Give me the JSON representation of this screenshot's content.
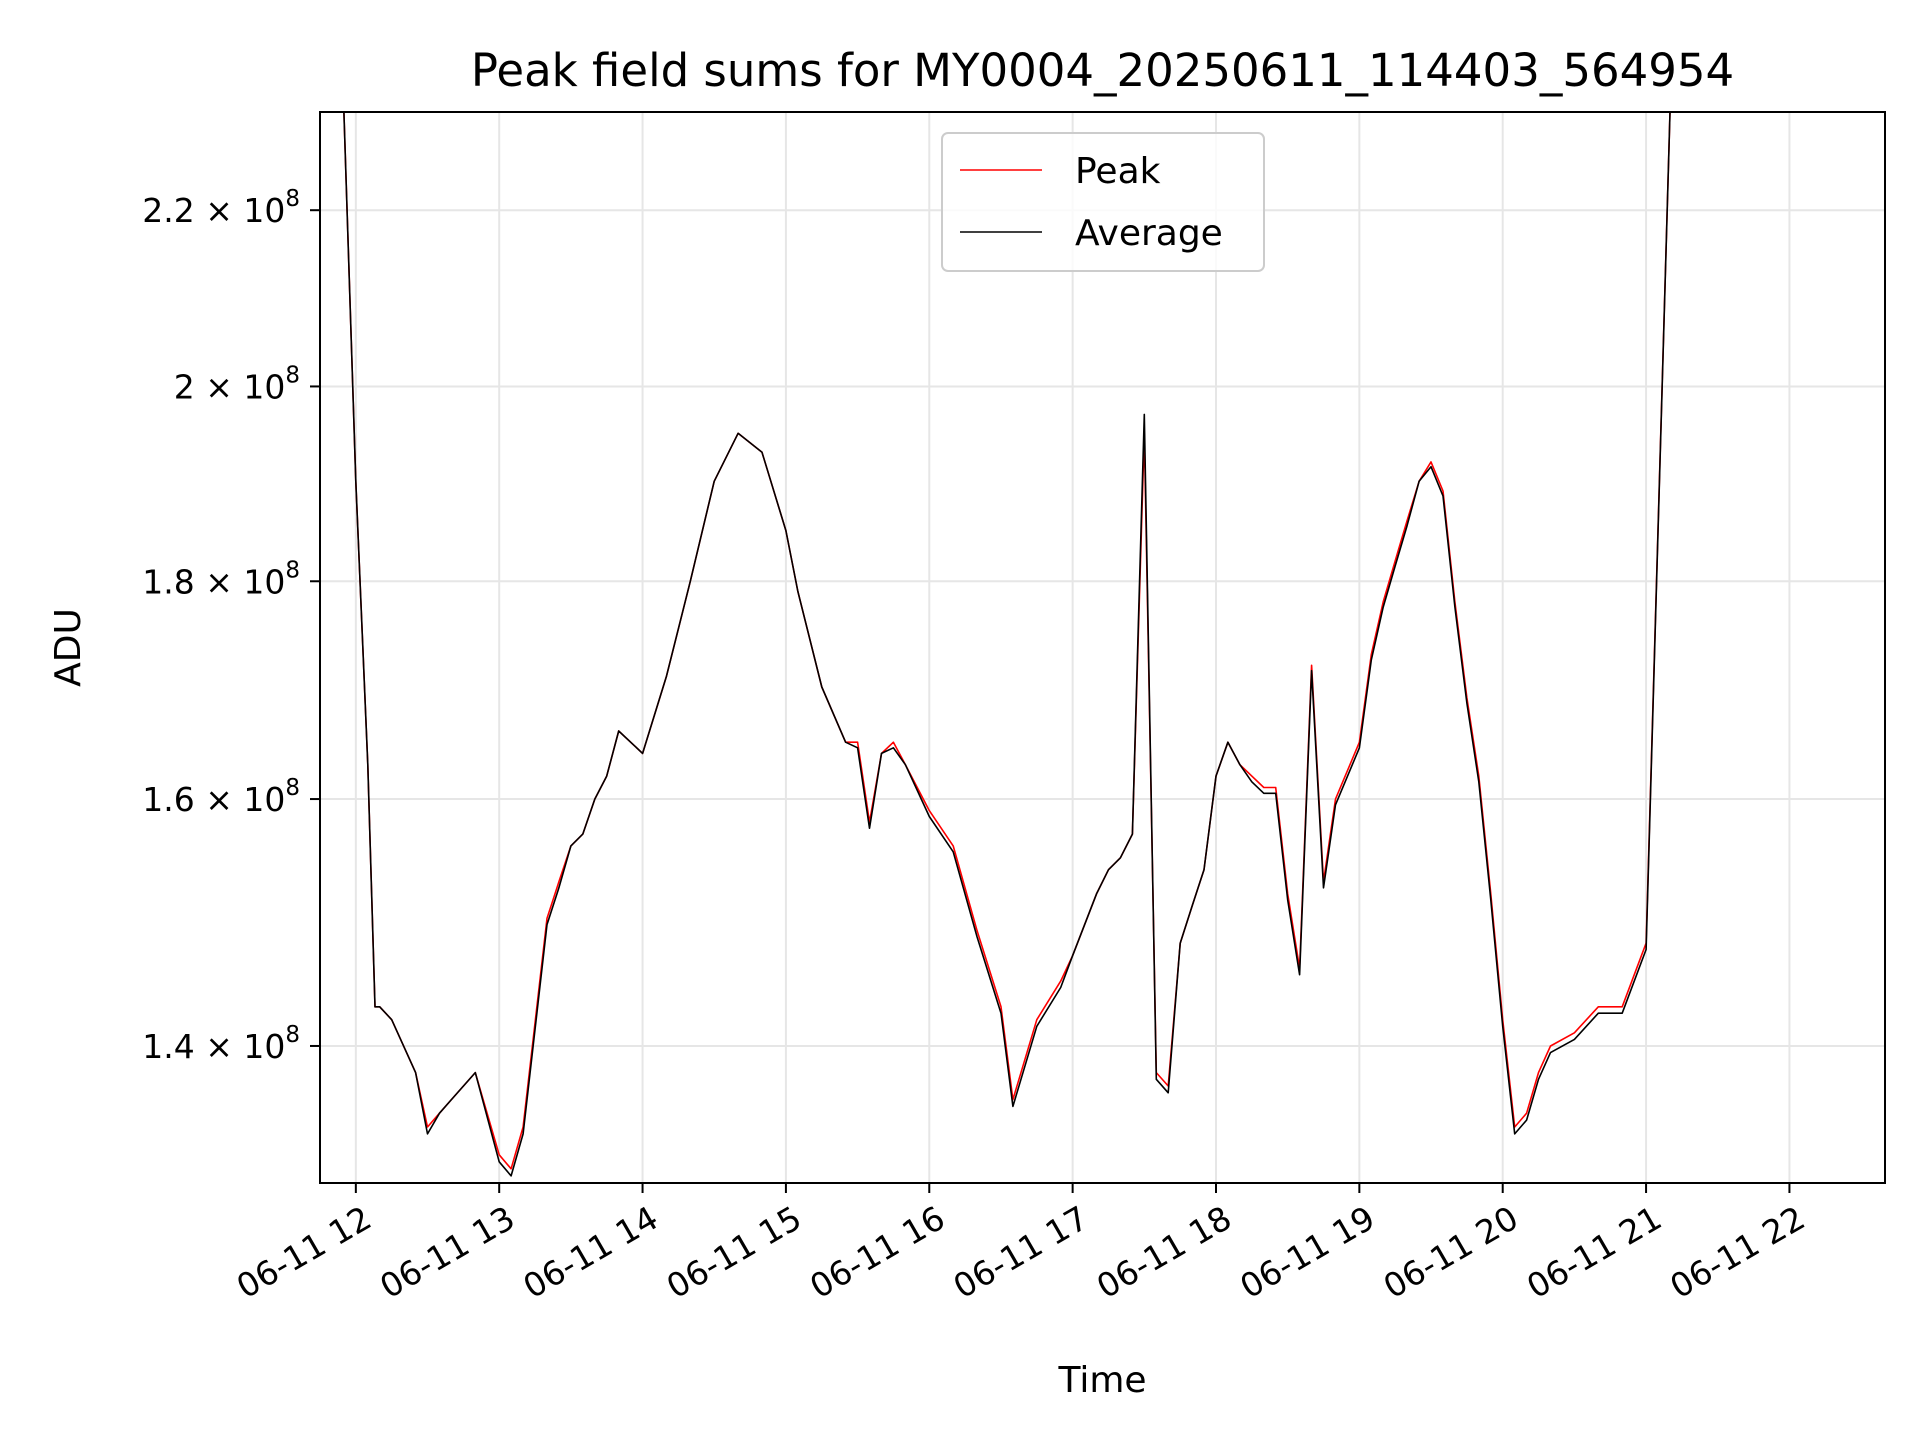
{
  "chart_data": {
    "type": "line",
    "title": "Peak field sums for MY0004_20250611_114403_564954",
    "xlabel": "Time",
    "ylabel": "ADU",
    "yscale": "log",
    "grid": true,
    "legend": "upper center",
    "xlim": [
      "2025-06-11 11:45",
      "2025-06-11 22:40"
    ],
    "ylim": [
      130000000,
      232000000
    ],
    "x_ticks": [
      "06-11 12",
      "06-11 13",
      "06-11 14",
      "06-11 15",
      "06-11 16",
      "06-11 17",
      "06-11 18",
      "06-11 19",
      "06-11 20",
      "06-11 21",
      "06-11 22"
    ],
    "y_ticks": [
      {
        "value": 140000000,
        "mantissa": "1.4",
        "exponent": "8"
      },
      {
        "value": 160000000,
        "mantissa": "1.6",
        "exponent": "8"
      },
      {
        "value": 180000000,
        "mantissa": "1.8",
        "exponent": "8"
      },
      {
        "value": 200000000,
        "mantissa": "2",
        "exponent": "8"
      },
      {
        "value": 220000000,
        "mantissa": "2.2",
        "exponent": "8"
      }
    ],
    "colors": {
      "Peak": "#ff0000",
      "Average": "#000000"
    },
    "x": [
      "11:45",
      "11:55",
      "12:00",
      "12:05",
      "12:08",
      "12:10",
      "12:15",
      "12:25",
      "12:30",
      "12:35",
      "12:40",
      "12:50",
      "13:00",
      "13:05",
      "13:10",
      "13:20",
      "13:25",
      "13:30",
      "13:35",
      "13:40",
      "13:45",
      "13:50",
      "14:00",
      "14:10",
      "14:20",
      "14:30",
      "14:40",
      "14:50",
      "15:00",
      "15:05",
      "15:15",
      "15:25",
      "15:30",
      "15:35",
      "15:40",
      "15:45",
      "15:50",
      "16:00",
      "16:10",
      "16:20",
      "16:30",
      "16:35",
      "16:45",
      "16:55",
      "17:00",
      "17:10",
      "17:15",
      "17:20",
      "17:25",
      "17:30",
      "17:35",
      "17:40",
      "17:45",
      "17:50",
      "17:55",
      "18:00",
      "18:05",
      "18:10",
      "18:15",
      "18:20",
      "18:25",
      "18:30",
      "18:35",
      "18:40",
      "18:45",
      "18:50",
      "19:00",
      "19:05",
      "19:10",
      "19:15",
      "19:20",
      "19:25",
      "19:30",
      "19:35",
      "19:40",
      "19:45",
      "19:50",
      "19:55",
      "20:00",
      "20:05",
      "20:10",
      "20:15",
      "20:20",
      "20:30",
      "20:40",
      "20:50",
      "21:00",
      "21:10",
      "21:20",
      "21:25",
      "21:30",
      "21:35",
      "21:40",
      "21:45",
      "21:50",
      "22:00",
      "22:05",
      "22:10",
      "22:15",
      "22:20",
      "22:30",
      "22:40"
    ],
    "series": [
      {
        "name": "Peak",
        "values": [
          232000000,
          232000000,
          190000000,
          163000000,
          143000000,
          143000000,
          142000000,
          138000000,
          134000000,
          135000000,
          136000000,
          138000000,
          132000000,
          131000000,
          134000000,
          150000000,
          153000000,
          156000000,
          157000000,
          160000000,
          162000000,
          166000000,
          164000000,
          171000000,
          180000000,
          190000000,
          195000000,
          193000000,
          185000000,
          179000000,
          170000000,
          165000000,
          165000000,
          158000000,
          164000000,
          165000000,
          163000000,
          159000000,
          156000000,
          149000000,
          143000000,
          136000000,
          142000000,
          145000000,
          147000000,
          152000000,
          154000000,
          155000000,
          157000000,
          195000000,
          138000000,
          137000000,
          148000000,
          151000000,
          154000000,
          162000000,
          165000000,
          163000000,
          162000000,
          161000000,
          161000000,
          152000000,
          146000000,
          172000000,
          153000000,
          160000000,
          165000000,
          173000000,
          178000000,
          182000000,
          186000000,
          190000000,
          192000000,
          189000000,
          178000000,
          169000000,
          162000000,
          152000000,
          142000000,
          134000000,
          135000000,
          138000000,
          140000000,
          141000000,
          143000000,
          143000000,
          148000000,
          232000000,
          232000000,
          232000000,
          232000000,
          232000000,
          232000000,
          232000000,
          232000000,
          232000000,
          232000000,
          232000000,
          232000000,
          232000000,
          232000000,
          232000000
        ]
      },
      {
        "name": "Average",
        "values": [
          232000000,
          232000000,
          190000000,
          163000000,
          143000000,
          143000000,
          142000000,
          138000000,
          133500000,
          135000000,
          136000000,
          138000000,
          131500000,
          130500000,
          133500000,
          149500000,
          152500000,
          156000000,
          157000000,
          160000000,
          162000000,
          166000000,
          164000000,
          171000000,
          180000000,
          190000000,
          195000000,
          193000000,
          185000000,
          179000000,
          170000000,
          165000000,
          164500000,
          157500000,
          164000000,
          164500000,
          163000000,
          158500000,
          155500000,
          148500000,
          142500000,
          135500000,
          141500000,
          144500000,
          147000000,
          152000000,
          154000000,
          155000000,
          157000000,
          197000000,
          137500000,
          136500000,
          148000000,
          151000000,
          154000000,
          162000000,
          165000000,
          163000000,
          161500000,
          160500000,
          160500000,
          151500000,
          145500000,
          171500000,
          152500000,
          159500000,
          164500000,
          172500000,
          177500000,
          181500000,
          185500000,
          190000000,
          191500000,
          188500000,
          177500000,
          168500000,
          161500000,
          151500000,
          141500000,
          133500000,
          134500000,
          137500000,
          139500000,
          140500000,
          142500000,
          142500000,
          147500000,
          232000000,
          232000000,
          232000000,
          232000000,
          232000000,
          232000000,
          232000000,
          232000000,
          232000000,
          232000000,
          232000000,
          232000000,
          232000000,
          232000000,
          232000000
        ]
      }
    ]
  }
}
